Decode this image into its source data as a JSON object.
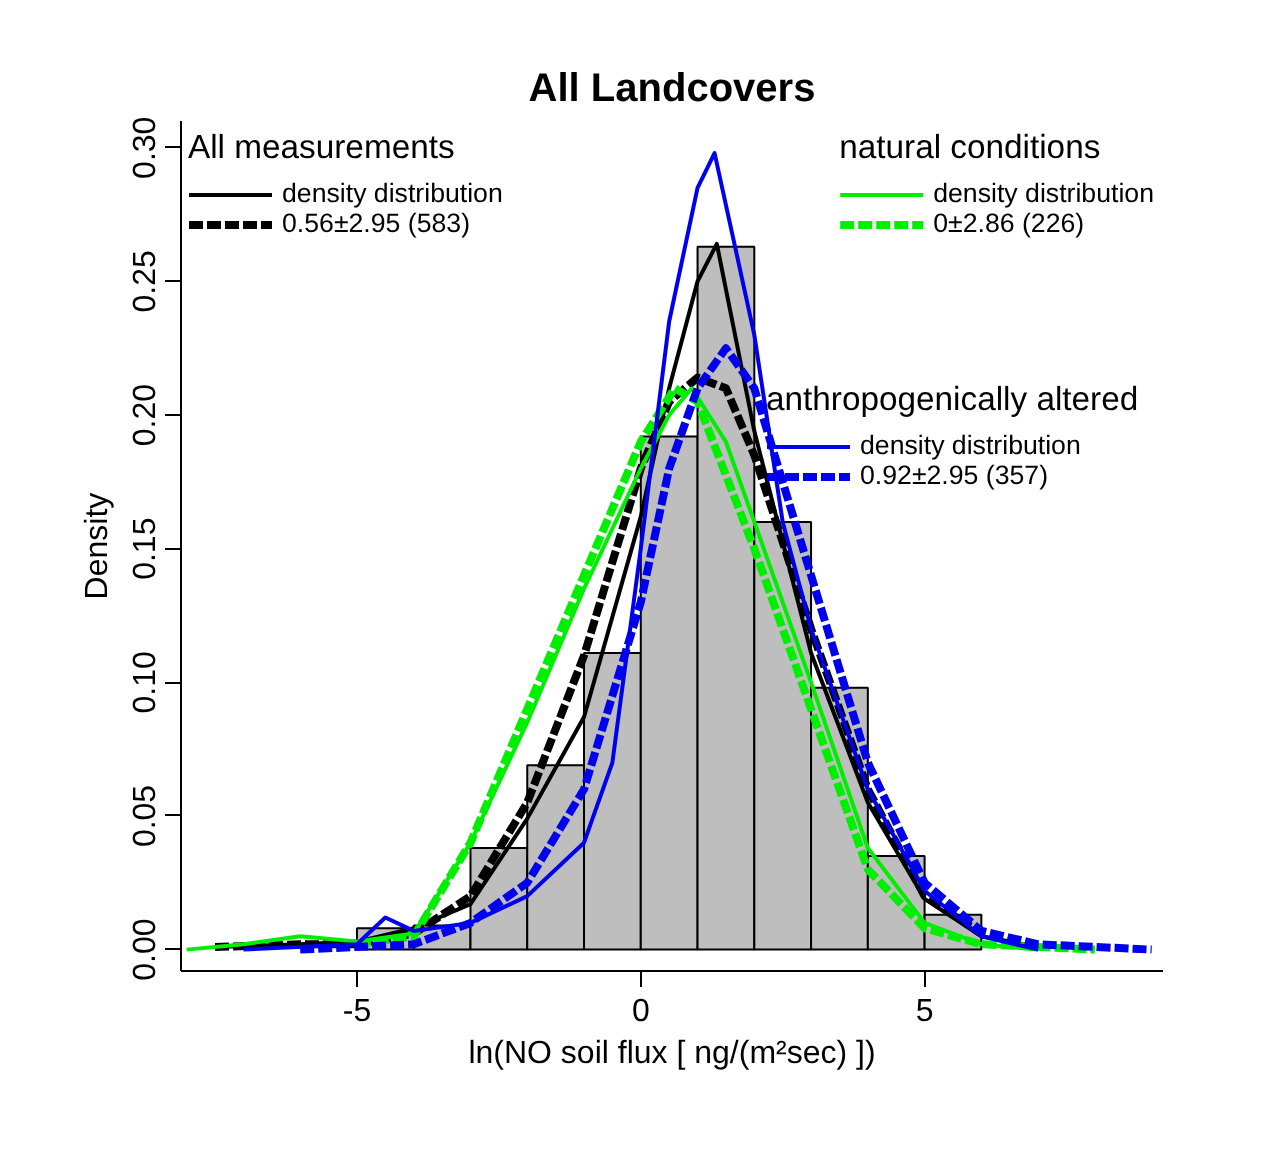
{
  "chart_data": {
    "type": "histogram",
    "title": "All Landcovers",
    "xlabel": "ln(NO soil flux [ ng/(m²sec) ])",
    "ylabel": "Density",
    "bins": [
      -5,
      -4,
      -3,
      -2,
      -1,
      0,
      1,
      2,
      3,
      4,
      5,
      6
    ],
    "values": [
      0.008,
      0.009,
      0.038,
      0.069,
      0.111,
      0.192,
      0.263,
      0.16,
      0.098,
      0.035,
      0.013
    ],
    "color": "#bebebe",
    "xlim": [
      -8.1,
      9.2
    ],
    "ylim": [
      -0.008,
      0.31
    ],
    "xticks": [
      -5,
      0,
      5
    ],
    "yticks": [
      {
        "value": 0,
        "label": "0.00"
      },
      0.05,
      {
        "value": 0.1,
        "label": "0.10"
      },
      0.15,
      {
        "value": 0.2,
        "label": "0.20"
      },
      0.25,
      {
        "value": 0.3,
        "label": "0.30"
      }
    ],
    "grid": false,
    "legend": "top",
    "annotations": [
      "All measurements",
      "natural conditions",
      "anthropogenically altered"
    ],
    "series": [
      {
        "type": "line",
        "name": "density distribution",
        "color": "#000000",
        "line_style": "solid",
        "x": [
          -7.5,
          -6,
          -5,
          -4,
          -3,
          -2,
          -1,
          0,
          0.5,
          1,
          1.34,
          2,
          3,
          4,
          5,
          6,
          7
        ],
        "values": [
          0.001,
          0.002,
          0.003,
          0.008,
          0.017,
          0.049,
          0.087,
          0.162,
          0.21,
          0.25,
          0.264,
          0.194,
          0.111,
          0.055,
          0.019,
          0.005,
          0.001
        ]
      },
      {
        "type": "line",
        "name": "0.56±2.95 (583)",
        "color": "#000000",
        "line_style": "dashed",
        "x": [
          -7.5,
          -6,
          -5,
          -4,
          -3,
          -2,
          -1,
          0,
          0.5,
          1,
          1.5,
          2,
          3,
          4,
          5,
          6
        ],
        "values": [
          0.001,
          0.002,
          0.002,
          0.006,
          0.02,
          0.055,
          0.11,
          0.18,
          0.205,
          0.214,
          0.21,
          0.185,
          0.12,
          0.06,
          0.02,
          0.006
        ]
      },
      {
        "type": "line",
        "name": "density distribution",
        "color": "#00ee00",
        "line_style": "solid",
        "x": [
          -8,
          -7,
          -6,
          -5,
          -4,
          -3,
          -2,
          -1,
          0,
          0.5,
          0.9,
          1.5,
          2,
          3,
          4,
          5,
          6,
          7
        ],
        "values": [
          0.0,
          0.002,
          0.005,
          0.003,
          0.006,
          0.04,
          0.085,
          0.135,
          0.18,
          0.2,
          0.21,
          0.19,
          0.16,
          0.1,
          0.038,
          0.01,
          0.002,
          0.0
        ]
      },
      {
        "type": "line",
        "name": "0±2.86 (226)",
        "color": "#00ee00",
        "line_style": "dashed",
        "x": [
          -5,
          -4,
          -3,
          -2,
          -1,
          0,
          0.6,
          1,
          2,
          3,
          4,
          5,
          6,
          8
        ],
        "values": [
          0.002,
          0.005,
          0.04,
          0.09,
          0.14,
          0.19,
          0.21,
          0.205,
          0.15,
          0.09,
          0.03,
          0.008,
          0.002,
          0.0
        ]
      },
      {
        "type": "line",
        "name": "density distribution",
        "color": "#0000ee",
        "line_style": "solid",
        "x": [
          -7,
          -5,
          -4.5,
          -4,
          -3,
          -2,
          -1,
          -0.5,
          0,
          0.5,
          1,
          1.3,
          2,
          2.5,
          3,
          3.5,
          4,
          5,
          6,
          7
        ],
        "values": [
          0.0,
          0.002,
          0.012,
          0.007,
          0.01,
          0.02,
          0.04,
          0.07,
          0.15,
          0.235,
          0.285,
          0.298,
          0.23,
          0.16,
          0.12,
          0.09,
          0.06,
          0.022,
          0.005,
          0.0
        ]
      },
      {
        "type": "line",
        "name": "0.92±2.95 (357)",
        "color": "#0000ee",
        "line_style": "dashed",
        "x": [
          -6,
          -4,
          -3,
          -2,
          -1,
          0,
          0.5,
          1,
          1.5,
          2,
          3,
          4,
          5,
          6,
          7,
          9
        ],
        "values": [
          0.0,
          0.002,
          0.01,
          0.025,
          0.06,
          0.13,
          0.18,
          0.21,
          0.225,
          0.21,
          0.14,
          0.07,
          0.025,
          0.007,
          0.002,
          0.0
        ]
      }
    ]
  }
}
